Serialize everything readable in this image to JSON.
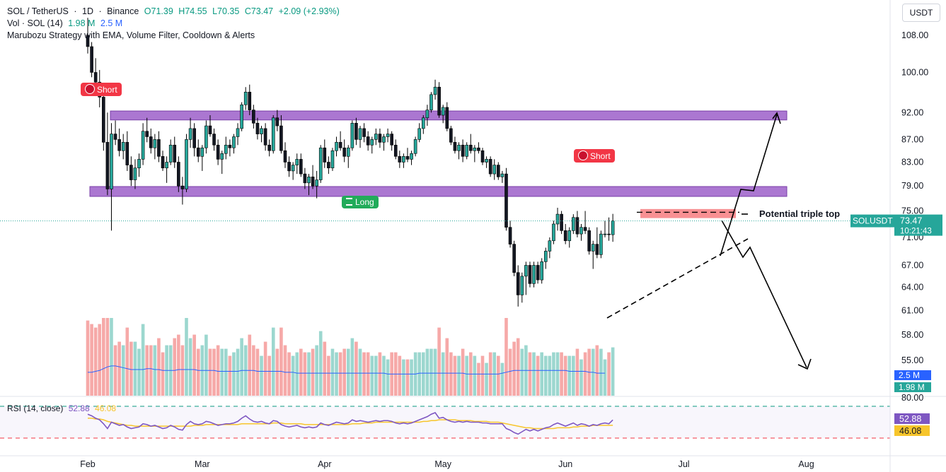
{
  "header": {
    "pair": "SOL / TetherUS",
    "interval": "1D",
    "exchange": "Binance",
    "open": "O71.39",
    "high": "H74.55",
    "low": "L70.35",
    "close": "C73.47",
    "change": "+2.09 (+2.93%)",
    "vol_label": "Vol · SOL (14)",
    "vol_value1": "1.98 M",
    "vol_value2": "2.5 M",
    "strategy": "Marubozu Strategy with EMA, Volume Filter, Cooldown & Alerts",
    "currency_button": "USDT"
  },
  "price_scale": {
    "labels": [
      "108.00",
      "100.00",
      "92.00",
      "87.00",
      "83.00",
      "79.00",
      "75.00",
      "71.00",
      "67.00",
      "64.00",
      "61.00",
      "58.00",
      "55.00"
    ],
    "current_symbol": "SOLUSDT",
    "current_price": "73.47",
    "countdown": "10:21:43",
    "vol_marker_1": "2.5 M",
    "vol_marker_2": "1.98 M"
  },
  "rsi": {
    "label": "RSI (14, close)",
    "value1": "52.88",
    "value2": "46.08",
    "scale_top": "80.00",
    "marker_rsi": "52.88",
    "marker_ma": "46.08"
  },
  "time_axis": [
    "Feb",
    "Mar",
    "Apr",
    "May",
    "Jun",
    "Jul",
    "Aug"
  ],
  "annotations": {
    "short_1": "Short",
    "short_2": "Short",
    "long_1": "Long",
    "triple_top": "Potential triple top"
  },
  "colors": {
    "up": "#26a69a",
    "down": "#ef5350",
    "zone": "#9c5fc9",
    "rsi_line": "#7e57c2",
    "rsi_ma": "#f7c52b"
  },
  "chart_data": {
    "type": "candlestick",
    "title": "SOL / TetherUS · 1D · Binance",
    "ylim": [
      58,
      112
    ],
    "zones": [
      {
        "name": "resistance",
        "from": 90.6,
        "to": 92.3
      },
      {
        "name": "support",
        "from": 77.3,
        "to": 78.9
      },
      {
        "name": "triple-top",
        "from": 73.9,
        "to": 75.3
      }
    ],
    "ohlc": [
      [
        108.0,
        112.0,
        104.0,
        105.5
      ],
      [
        105.5,
        106.5,
        99.0,
        100.0
      ],
      [
        100.0,
        103.0,
        96.0,
        98.0
      ],
      [
        98.0,
        100.5,
        93.0,
        95.0
      ],
      [
        95.0,
        96.0,
        85.0,
        86.5
      ],
      [
        86.5,
        92.0,
        77.5,
        78.5
      ],
      [
        78.5,
        90.0,
        72.0,
        88.0
      ],
      [
        88.0,
        90.5,
        86.0,
        87.0
      ],
      [
        87.0,
        89.0,
        84.0,
        85.0
      ],
      [
        85.0,
        88.0,
        83.5,
        86.5
      ],
      [
        86.5,
        88.5,
        81.5,
        82.5
      ],
      [
        82.5,
        84.0,
        79.0,
        80.0
      ],
      [
        80.0,
        83.5,
        78.5,
        82.0
      ],
      [
        82.0,
        84.5,
        80.5,
        83.5
      ],
      [
        83.5,
        90.0,
        82.5,
        88.5
      ],
      [
        88.5,
        91.0,
        86.5,
        87.5
      ],
      [
        87.5,
        89.0,
        84.5,
        85.5
      ],
      [
        85.5,
        88.0,
        83.5,
        87.0
      ],
      [
        87.0,
        88.5,
        83.0,
        84.0
      ],
      [
        84.0,
        85.0,
        81.5,
        82.0
      ],
      [
        82.0,
        84.0,
        79.5,
        83.0
      ],
      [
        83.0,
        87.0,
        82.5,
        86.0
      ],
      [
        86.0,
        87.5,
        82.0,
        83.0
      ],
      [
        83.0,
        84.0,
        78.0,
        79.0
      ],
      [
        79.0,
        80.5,
        76.0,
        78.5
      ],
      [
        78.5,
        88.0,
        78.0,
        87.0
      ],
      [
        87.0,
        91.0,
        85.5,
        89.0
      ],
      [
        89.0,
        90.0,
        84.0,
        85.5
      ],
      [
        85.5,
        87.0,
        83.0,
        84.0
      ],
      [
        84.0,
        86.0,
        81.5,
        85.5
      ],
      [
        85.5,
        90.5,
        84.5,
        89.5
      ],
      [
        89.5,
        91.5,
        87.5,
        88.0
      ],
      [
        88.0,
        89.0,
        85.0,
        86.0
      ],
      [
        86.0,
        87.0,
        82.5,
        83.5
      ],
      [
        83.5,
        85.0,
        81.0,
        84.5
      ],
      [
        84.5,
        87.5,
        83.5,
        86.0
      ],
      [
        86.0,
        87.0,
        84.0,
        85.5
      ],
      [
        85.5,
        88.0,
        84.5,
        87.5
      ],
      [
        87.5,
        90.0,
        86.0,
        89.0
      ],
      [
        89.0,
        94.0,
        88.5,
        93.5
      ],
      [
        93.5,
        97.0,
        92.5,
        96.0
      ],
      [
        96.0,
        97.5,
        91.5,
        92.5
      ],
      [
        92.5,
        93.5,
        89.0,
        90.0
      ],
      [
        90.0,
        91.0,
        87.0,
        88.0
      ],
      [
        88.0,
        89.5,
        86.5,
        89.0
      ],
      [
        89.0,
        90.0,
        85.0,
        86.0
      ],
      [
        86.0,
        87.0,
        84.0,
        85.0
      ],
      [
        85.0,
        91.5,
        84.5,
        91.0
      ],
      [
        91.0,
        92.5,
        88.5,
        89.5
      ],
      [
        89.5,
        91.5,
        84.5,
        85.0
      ],
      [
        85.0,
        86.5,
        82.0,
        83.0
      ],
      [
        83.0,
        84.0,
        80.5,
        81.5
      ],
      [
        81.5,
        83.0,
        80.0,
        82.5
      ],
      [
        82.5,
        84.5,
        81.0,
        83.5
      ],
      [
        83.5,
        84.5,
        80.5,
        81.0
      ],
      [
        81.0,
        82.0,
        78.5,
        79.5
      ],
      [
        79.5,
        81.0,
        77.5,
        80.5
      ],
      [
        80.5,
        82.5,
        78.5,
        79.0
      ],
      [
        79.0,
        81.5,
        77.0,
        80.0
      ],
      [
        80.0,
        86.0,
        79.5,
        85.5
      ],
      [
        85.5,
        87.0,
        82.0,
        83.0
      ],
      [
        83.0,
        84.0,
        81.0,
        82.0
      ],
      [
        82.0,
        85.5,
        81.5,
        85.0
      ],
      [
        85.0,
        87.5,
        84.0,
        86.5
      ],
      [
        86.5,
        88.5,
        85.0,
        85.5
      ],
      [
        85.5,
        87.0,
        83.0,
        84.0
      ],
      [
        84.0,
        86.0,
        82.0,
        85.5
      ],
      [
        85.5,
        90.5,
        85.0,
        90.0
      ],
      [
        90.0,
        91.0,
        86.0,
        87.0
      ],
      [
        87.0,
        89.5,
        85.5,
        89.0
      ],
      [
        89.0,
        90.0,
        86.5,
        87.5
      ],
      [
        87.5,
        88.5,
        85.0,
        86.0
      ],
      [
        86.0,
        87.5,
        84.5,
        87.0
      ],
      [
        87.0,
        89.0,
        86.0,
        88.0
      ],
      [
        88.0,
        89.0,
        85.5,
        86.5
      ],
      [
        86.5,
        88.0,
        85.0,
        87.5
      ],
      [
        87.5,
        89.0,
        86.5,
        88.0
      ],
      [
        88.0,
        88.5,
        85.0,
        86.0
      ],
      [
        86.0,
        87.0,
        83.5,
        84.0
      ],
      [
        84.0,
        85.0,
        82.0,
        83.0
      ],
      [
        83.0,
        84.5,
        82.0,
        84.0
      ],
      [
        84.0,
        85.5,
        83.0,
        83.5
      ],
      [
        83.5,
        85.0,
        82.5,
        84.5
      ],
      [
        84.5,
        87.5,
        84.0,
        87.0
      ],
      [
        87.0,
        90.0,
        86.5,
        89.0
      ],
      [
        89.0,
        91.5,
        88.0,
        91.0
      ],
      [
        91.0,
        93.5,
        89.5,
        92.5
      ],
      [
        92.5,
        96.0,
        92.0,
        95.5
      ],
      [
        95.5,
        98.5,
        94.5,
        97.0
      ],
      [
        97.0,
        98.0,
        91.0,
        91.5
      ],
      [
        91.5,
        93.5,
        90.0,
        93.0
      ],
      [
        93.0,
        94.0,
        88.5,
        89.0
      ],
      [
        89.0,
        89.5,
        86.0,
        86.5
      ],
      [
        86.5,
        87.5,
        84.5,
        85.0
      ],
      [
        85.0,
        86.5,
        83.5,
        86.0
      ],
      [
        86.0,
        87.0,
        83.0,
        84.0
      ],
      [
        84.0,
        86.5,
        83.5,
        86.0
      ],
      [
        86.0,
        88.0,
        84.5,
        85.0
      ],
      [
        85.0,
        86.0,
        83.0,
        85.5
      ],
      [
        85.5,
        86.5,
        84.5,
        85.0
      ],
      [
        85.0,
        85.5,
        82.5,
        83.0
      ],
      [
        83.0,
        84.0,
        82.0,
        83.5
      ],
      [
        83.5,
        84.0,
        80.5,
        81.0
      ],
      [
        81.0,
        83.5,
        80.0,
        82.5
      ],
      [
        82.5,
        83.0,
        80.0,
        80.5
      ],
      [
        80.5,
        81.5,
        79.5,
        81.0
      ],
      [
        81.0,
        82.0,
        72.0,
        72.5
      ],
      [
        72.5,
        73.5,
        69.5,
        70.0
      ],
      [
        70.0,
        70.5,
        65.5,
        66.0
      ],
      [
        66.0,
        67.0,
        61.5,
        63.0
      ],
      [
        63.0,
        66.0,
        62.0,
        65.5
      ],
      [
        65.5,
        67.5,
        63.0,
        67.0
      ],
      [
        67.0,
        67.5,
        64.0,
        64.5
      ],
      [
        64.5,
        67.5,
        64.0,
        67.0
      ],
      [
        67.0,
        67.5,
        64.5,
        65.0
      ],
      [
        65.0,
        68.0,
        64.5,
        67.5
      ],
      [
        67.5,
        69.5,
        66.5,
        69.0
      ],
      [
        69.0,
        71.0,
        68.0,
        70.5
      ],
      [
        70.5,
        73.5,
        70.0,
        73.0
      ],
      [
        73.0,
        75.5,
        72.0,
        74.5
      ],
      [
        74.5,
        75.0,
        71.5,
        72.0
      ],
      [
        72.0,
        73.0,
        70.0,
        70.5
      ],
      [
        70.5,
        72.5,
        69.5,
        72.0
      ],
      [
        72.0,
        74.5,
        71.5,
        74.0
      ],
      [
        74.0,
        75.0,
        71.0,
        71.5
      ],
      [
        71.5,
        73.0,
        70.5,
        72.5
      ],
      [
        72.5,
        75.0,
        71.5,
        72.0
      ],
      [
        72.0,
        72.5,
        68.5,
        69.0
      ],
      [
        69.0,
        70.5,
        66.5,
        70.0
      ],
      [
        70.0,
        72.5,
        68.0,
        68.5
      ],
      [
        68.5,
        72.0,
        68.0,
        71.5
      ],
      [
        71.5,
        73.5,
        71.0,
        71.5
      ],
      [
        71.5,
        74.0,
        70.5,
        71.39
      ],
      [
        71.39,
        74.55,
        70.35,
        73.47
      ]
    ],
    "volume_ma": [
      2.6,
      2.6,
      2.7,
      2.8,
      3.0,
      3.2,
      3.3,
      3.3,
      3.2,
      3.1,
      3.0,
      2.9,
      2.9,
      2.9,
      2.9,
      3.0,
      3.0,
      2.9,
      2.9,
      2.8,
      2.8,
      2.8,
      2.8,
      2.9,
      2.9,
      2.9,
      2.9,
      2.9,
      2.8,
      2.8,
      2.8,
      2.8,
      2.8,
      2.7,
      2.7,
      2.7,
      2.7,
      2.7,
      2.7,
      2.8,
      2.8,
      2.8,
      2.8,
      2.7,
      2.7,
      2.7,
      2.7,
      2.7,
      2.7,
      2.7,
      2.6,
      2.6,
      2.6,
      2.5,
      2.5,
      2.5,
      2.5,
      2.5,
      2.5,
      2.5,
      2.5,
      2.5,
      2.5,
      2.5,
      2.5,
      2.5,
      2.5,
      2.5,
      2.5,
      2.5,
      2.5,
      2.5,
      2.5,
      2.5,
      2.5,
      2.5,
      2.4,
      2.4,
      2.4,
      2.4,
      2.4,
      2.4,
      2.4,
      2.4,
      2.5,
      2.5,
      2.5,
      2.5,
      2.5,
      2.5,
      2.5,
      2.5,
      2.5,
      2.5,
      2.5,
      2.5,
      2.4,
      2.4,
      2.4,
      2.4,
      2.4,
      2.4,
      2.4,
      2.4,
      2.4,
      2.5,
      2.6,
      2.7,
      2.8,
      2.8,
      2.8,
      2.8,
      2.8,
      2.8,
      2.8,
      2.8,
      2.8,
      2.8,
      2.8,
      2.8,
      2.8,
      2.8,
      2.7,
      2.7,
      2.7,
      2.7,
      2.7,
      2.6,
      2.6,
      2.5,
      2.5,
      2.5
    ],
    "rsi": [
      60,
      58,
      55,
      53,
      48,
      42,
      50,
      48,
      46,
      47,
      44,
      42,
      43,
      44,
      48,
      47,
      45,
      46,
      44,
      42,
      43,
      46,
      44,
      41,
      40,
      47,
      51,
      48,
      47,
      48,
      51,
      50,
      48,
      46,
      47,
      48,
      48,
      49,
      51,
      55,
      58,
      54,
      51,
      50,
      51,
      49,
      48,
      52,
      51,
      47,
      45,
      44,
      45,
      46,
      44,
      43,
      44,
      43,
      44,
      49,
      47,
      46,
      48,
      50,
      49,
      48,
      49,
      53,
      51,
      52,
      51,
      50,
      51,
      52,
      51,
      52,
      52,
      51,
      49,
      48,
      49,
      48,
      49,
      51,
      53,
      55,
      57,
      60,
      62,
      55,
      56,
      53,
      51,
      50,
      51,
      50,
      51,
      50,
      50,
      50,
      49,
      49,
      48,
      48,
      48,
      48,
      42,
      40,
      37,
      35,
      38,
      41,
      39,
      41,
      39,
      41,
      43,
      44,
      47,
      49,
      47,
      45,
      47,
      49,
      46,
      48,
      47,
      45,
      47,
      46,
      48,
      49,
      48,
      52.88
    ],
    "rsi_ma": [
      55,
      55,
      54,
      54,
      53,
      51,
      50,
      49,
      48,
      47,
      46,
      46,
      45,
      45,
      45,
      45,
      45,
      45,
      45,
      45,
      45,
      45,
      45,
      45,
      45,
      45,
      45,
      46,
      46,
      46,
      47,
      47,
      47,
      47,
      47,
      47,
      47,
      47,
      47,
      48,
      48,
      48,
      48,
      48,
      48,
      48,
      48,
      49,
      49,
      49,
      48,
      48,
      48,
      48,
      48,
      47,
      47,
      47,
      47,
      47,
      47,
      47,
      47,
      47,
      47,
      47,
      47,
      48,
      48,
      48,
      49,
      49,
      49,
      50,
      50,
      50,
      50,
      50,
      50,
      50,
      50,
      50,
      50,
      50,
      50,
      51,
      51,
      52,
      52,
      53,
      53,
      53,
      53,
      53,
      52,
      52,
      52,
      52,
      51,
      51,
      51,
      51,
      50,
      50,
      50,
      49,
      48,
      47,
      46,
      45,
      44,
      43,
      43,
      42,
      42,
      42,
      42,
      42,
      42,
      43,
      43,
      43,
      43,
      44,
      44,
      45,
      45,
      45,
      46,
      46,
      46,
      46,
      46,
      46.08
    ],
    "time_ticks": [
      {
        "label": "Feb",
        "index": 0
      },
      {
        "label": "Mar",
        "index": 29
      },
      {
        "label": "Apr",
        "index": 60
      },
      {
        "label": "May",
        "index": 90
      },
      {
        "label": "Jun",
        "index": 121
      },
      {
        "label": "Jul",
        "index": 151
      },
      {
        "label": "Aug",
        "index": 182
      }
    ],
    "current_price": 73.47
  }
}
